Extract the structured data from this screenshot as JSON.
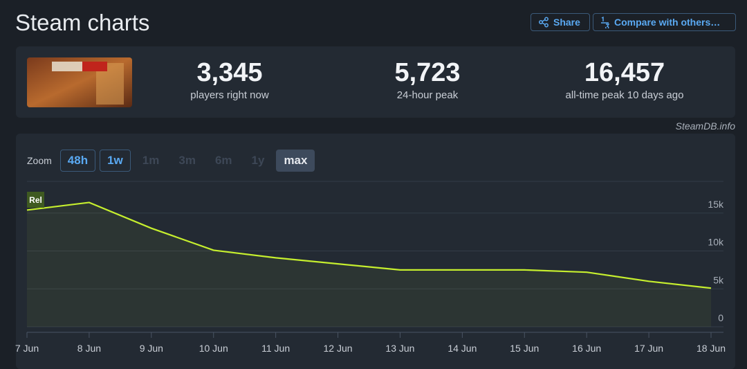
{
  "header": {
    "title": "Steam charts",
    "share": "Share",
    "compare": "Compare with others…"
  },
  "stats": [
    {
      "value": "3,345",
      "label": "players right now"
    },
    {
      "value": "5,723",
      "label": "24-hour peak"
    },
    {
      "value": "16,457",
      "label": "all-time peak 10 days ago"
    }
  ],
  "source": "SteamDB.info",
  "zoom": {
    "label": "Zoom",
    "options": [
      "48h",
      "1w",
      "1m",
      "3m",
      "6m",
      "1y",
      "max"
    ]
  },
  "chart_data": {
    "type": "line",
    "categories": [
      "7 Jun",
      "8 Jun",
      "9 Jun",
      "10 Jun",
      "11 Jun",
      "12 Jun",
      "13 Jun",
      "14 Jun",
      "15 Jun",
      "16 Jun",
      "17 Jun",
      "18 Jun"
    ],
    "values": [
      15400,
      16400,
      13000,
      10100,
      9100,
      8300,
      7500,
      7500,
      7500,
      7200,
      6000,
      5100
    ],
    "color": "#c6ef2e",
    "ylim": [
      0,
      19000
    ],
    "yticks": [
      0,
      {
        "value": 5000,
        "label": "5k"
      },
      {
        "value": 10000,
        "label": "10k"
      },
      {
        "value": 15000,
        "label": "15k"
      }
    ],
    "grid": true,
    "annotations": [
      {
        "label": "Rel",
        "x": "7 Jun"
      }
    ]
  }
}
